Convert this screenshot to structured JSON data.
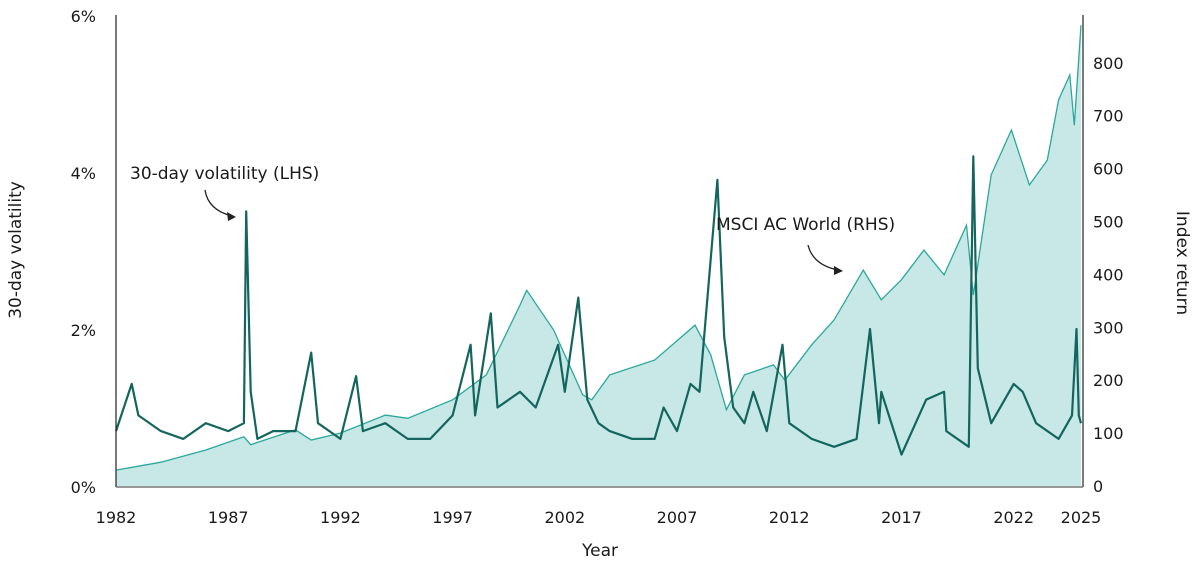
{
  "chart_data": {
    "type": "line",
    "xlabel": "Year",
    "ylabel_left": "30-day volatility",
    "ylabel_right": "Index return",
    "xlim": [
      1982,
      2025
    ],
    "ylim_left": [
      0,
      6
    ],
    "ylim_right": [
      0,
      880
    ],
    "x_ticks": [
      "1982",
      "1987",
      "1992",
      "1997",
      "2002",
      "2007",
      "2012",
      "2017",
      "2022",
      "2025"
    ],
    "y_left_ticks": [
      "0%",
      "2%",
      "4%",
      "6%"
    ],
    "y_right_ticks": [
      "0",
      "100",
      "200",
      "300",
      "400",
      "500",
      "600",
      "700",
      "800"
    ],
    "grid": false,
    "colors": {
      "volatility": "#14655e",
      "index_line": "#2aa89c",
      "index_fill": "#c7e8e6"
    },
    "annotations": {
      "volatility": "30-day volatility (LHS)",
      "index": "MSCI AC World (RHS)"
    },
    "series": [
      {
        "name": "MSCI AC World (RHS)",
        "axis": "right",
        "style": "area",
        "x": [
          1982,
          1984,
          1986,
          1987.7,
          1988,
          1990,
          1990.7,
          1992,
          1994,
          1995,
          1997,
          1998.5,
          2000,
          2000.3,
          2001.5,
          2002.8,
          2003.2,
          2004,
          2006,
          2007.8,
          2008.5,
          2009.2,
          2010,
          2011.3,
          2011.8,
          2013,
          2014,
          2015.3,
          2016.1,
          2017,
          2018,
          2018.9,
          2019.9,
          2020.2,
          2021,
          2021.9,
          2022.7,
          2023.5,
          2024,
          2024.5,
          2024.7,
          2025
        ],
        "y": [
          30,
          45,
          68,
          93,
          78,
          106,
          87,
          100,
          134,
          128,
          163,
          210,
          342,
          370,
          295,
          172,
          163,
          210,
          238,
          304,
          248,
          144,
          210,
          229,
          200,
          267,
          314,
          408,
          352,
          390,
          446,
          399,
          493,
          361,
          588,
          673,
          569,
          616,
          730,
          777,
          682,
          871
        ]
      },
      {
        "name": "30-day volatility (LHS)",
        "axis": "left",
        "style": "line",
        "x": [
          1982,
          1982.7,
          1983,
          1984,
          1985,
          1986,
          1987,
          1987.7,
          1987.8,
          1988,
          1988.3,
          1989,
          1990,
          1990.7,
          1991,
          1992,
          1992.7,
          1993,
          1994,
          1995,
          1996,
          1997,
          1997.8,
          1998,
          1998.7,
          1999,
          2000,
          2000.7,
          2001.7,
          2002,
          2002.6,
          2003,
          2003.5,
          2004,
          2005,
          2006,
          2006.4,
          2007,
          2007.6,
          2008,
          2008.8,
          2009.1,
          2009.5,
          2010,
          2010.4,
          2011,
          2011.7,
          2012,
          2013,
          2014,
          2015,
          2015.6,
          2016,
          2016.1,
          2017,
          2018.1,
          2018.9,
          2019,
          2020,
          2020.2,
          2020.4,
          2021,
          2022,
          2022.4,
          2023,
          2024,
          2024.6,
          2024.8,
          2024.9,
          2025
        ],
        "y": [
          0.7,
          1.3,
          0.9,
          0.7,
          0.6,
          0.8,
          0.7,
          0.8,
          3.5,
          1.2,
          0.6,
          0.7,
          0.7,
          1.7,
          0.8,
          0.6,
          1.4,
          0.7,
          0.8,
          0.6,
          0.6,
          0.9,
          1.8,
          0.9,
          2.2,
          1.0,
          1.2,
          1.0,
          1.8,
          1.2,
          2.4,
          1.1,
          0.8,
          0.7,
          0.6,
          0.6,
          1.0,
          0.7,
          1.3,
          1.2,
          3.9,
          1.9,
          1.0,
          0.8,
          1.2,
          0.7,
          1.8,
          0.8,
          0.6,
          0.5,
          0.6,
          2.0,
          0.8,
          1.2,
          0.4,
          1.1,
          1.2,
          0.7,
          0.5,
          4.2,
          1.5,
          0.8,
          1.3,
          1.2,
          0.8,
          0.6,
          0.9,
          2.0,
          0.9,
          0.8
        ]
      }
    ]
  }
}
